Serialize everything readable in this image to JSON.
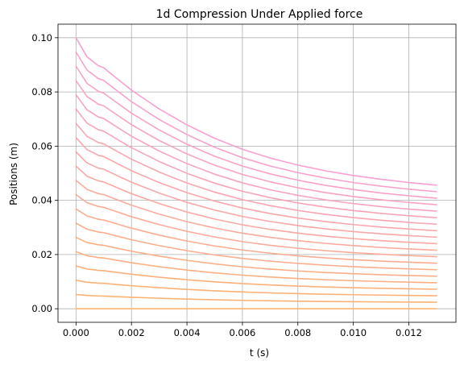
{
  "chart_data": {
    "type": "line",
    "title": "1d Compression Under Applied force",
    "xlabel": "t (s)",
    "ylabel": "Positions (m)",
    "xlim": [
      -0.00065,
      0.0137
    ],
    "ylim": [
      -0.005,
      0.105
    ],
    "xticks": [
      0.0,
      0.002,
      0.004,
      0.006,
      0.008,
      0.01,
      0.012
    ],
    "xtick_labels": [
      "0.000",
      "0.002",
      "0.004",
      "0.006",
      "0.008",
      "0.010",
      "0.012"
    ],
    "yticks": [
      0.0,
      0.02,
      0.04,
      0.06,
      0.08,
      0.1
    ],
    "ytick_labels": [
      "0.00",
      "0.02",
      "0.04",
      "0.06",
      "0.08",
      "0.10"
    ],
    "grid": true,
    "legend": false,
    "color_start": "#fdb36b",
    "color_end": "#f99fd2",
    "x": [
      0.0,
      0.0002,
      0.0004,
      0.0006,
      0.0008,
      0.001,
      0.0015,
      0.002,
      0.003,
      0.004,
      0.005,
      0.006,
      0.007,
      0.008,
      0.009,
      0.01,
      0.011,
      0.012,
      0.013
    ],
    "series": [
      {
        "values": [
          0.0,
          0.0,
          0.0,
          0.0,
          0.0,
          0.0,
          0.0,
          0.0,
          0.0,
          0.0,
          0.0,
          0.0,
          0.0,
          0.0,
          0.0,
          0.0,
          0.0,
          0.0,
          0.0
        ]
      },
      {
        "values": [
          0.00526,
          0.00508,
          0.00489,
          0.00481,
          0.00472,
          0.00468,
          0.00446,
          0.00425,
          0.00388,
          0.00357,
          0.00331,
          0.0031,
          0.00293,
          0.00279,
          0.00268,
          0.00259,
          0.00251,
          0.00245,
          0.0024
        ]
      },
      {
        "values": [
          0.01053,
          0.01015,
          0.00978,
          0.00962,
          0.00944,
          0.00936,
          0.00892,
          0.00849,
          0.00776,
          0.00714,
          0.00662,
          0.00619,
          0.00585,
          0.00558,
          0.00536,
          0.00518,
          0.00503,
          0.0049,
          0.0048
        ]
      },
      {
        "values": [
          0.01579,
          0.01523,
          0.01466,
          0.01442,
          0.01416,
          0.01404,
          0.01338,
          0.01274,
          0.01164,
          0.01071,
          0.00993,
          0.00929,
          0.00878,
          0.00837,
          0.00803,
          0.00776,
          0.00754,
          0.00736,
          0.0072
        ]
      },
      {
        "values": [
          0.02105,
          0.0203,
          0.01955,
          0.01923,
          0.01888,
          0.01872,
          0.01784,
          0.01698,
          0.01552,
          0.01428,
          0.01324,
          0.01239,
          0.01171,
          0.01116,
          0.01071,
          0.01035,
          0.01005,
          0.00981,
          0.0096
        ]
      },
      {
        "values": [
          0.02632,
          0.02538,
          0.02444,
          0.02404,
          0.02359,
          0.0234,
          0.0223,
          0.02123,
          0.0194,
          0.01785,
          0.01655,
          0.01548,
          0.01464,
          0.01395,
          0.01339,
          0.01294,
          0.01256,
          0.01226,
          0.012
        ]
      },
      {
        "values": [
          0.03158,
          0.03045,
          0.02933,
          0.02884,
          0.02831,
          0.02807,
          0.02676,
          0.02547,
          0.02328,
          0.02142,
          0.01986,
          0.01858,
          0.01756,
          0.01674,
          0.01607,
          0.01553,
          0.01508,
          0.01471,
          0.0144
        ]
      },
      {
        "values": [
          0.03684,
          0.03553,
          0.03422,
          0.03365,
          0.03303,
          0.03275,
          0.03122,
          0.02972,
          0.02716,
          0.02499,
          0.02317,
          0.02168,
          0.02049,
          0.01953,
          0.01875,
          0.01811,
          0.01759,
          0.01716,
          0.0168
        ]
      },
      {
        "values": [
          0.04211,
          0.04061,
          0.03911,
          0.03846,
          0.03775,
          0.03743,
          0.03568,
          0.03396,
          0.03104,
          0.02856,
          0.02648,
          0.02477,
          0.02342,
          0.02232,
          0.02142,
          0.0207,
          0.0201,
          0.01961,
          0.0192
        ]
      },
      {
        "values": [
          0.04737,
          0.04568,
          0.044,
          0.04327,
          0.04247,
          0.04211,
          0.04014,
          0.03821,
          0.03492,
          0.03213,
          0.02979,
          0.02787,
          0.02634,
          0.02511,
          0.0241,
          0.02329,
          0.02261,
          0.02207,
          0.0216
        ]
      },
      {
        "values": [
          0.05263,
          0.05076,
          0.04889,
          0.04808,
          0.04719,
          0.04679,
          0.0446,
          0.04245,
          0.0388,
          0.0357,
          0.0331,
          0.03097,
          0.02927,
          0.0279,
          0.02678,
          0.02588,
          0.02513,
          0.02452,
          0.024
        ]
      },
      {
        "values": [
          0.05789,
          0.05583,
          0.05378,
          0.05288,
          0.05191,
          0.05147,
          0.04906,
          0.0467,
          0.04268,
          0.03927,
          0.03641,
          0.03406,
          0.0322,
          0.03069,
          0.02946,
          0.02846,
          0.02764,
          0.02697,
          0.0264
        ]
      },
      {
        "values": [
          0.06316,
          0.06091,
          0.05867,
          0.05769,
          0.05663,
          0.05615,
          0.05352,
          0.05094,
          0.04656,
          0.04284,
          0.03972,
          0.03716,
          0.03512,
          0.03348,
          0.03214,
          0.03105,
          0.03015,
          0.02942,
          0.0288
        ]
      },
      {
        "values": [
          0.06842,
          0.06598,
          0.06356,
          0.0625,
          0.06135,
          0.06083,
          0.05798,
          0.05519,
          0.05044,
          0.04641,
          0.04303,
          0.04026,
          0.03805,
          0.03627,
          0.03481,
          0.03364,
          0.03266,
          0.03187,
          0.0312
        ]
      },
      {
        "values": [
          0.07368,
          0.07106,
          0.06845,
          0.06731,
          0.06607,
          0.06551,
          0.06244,
          0.05943,
          0.05432,
          0.04998,
          0.04634,
          0.04335,
          0.04098,
          0.03906,
          0.03749,
          0.03622,
          0.03518,
          0.03432,
          0.0336
        ]
      },
      {
        "values": [
          0.07895,
          0.07614,
          0.07334,
          0.07212,
          0.07079,
          0.07019,
          0.0669,
          0.06368,
          0.0582,
          0.05355,
          0.04965,
          0.04645,
          0.0439,
          0.04185,
          0.04017,
          0.03881,
          0.03769,
          0.03677,
          0.036
        ]
      },
      {
        "values": [
          0.08421,
          0.08121,
          0.07823,
          0.07692,
          0.07551,
          0.07487,
          0.07136,
          0.06792,
          0.06208,
          0.05712,
          0.05296,
          0.04955,
          0.04683,
          0.04464,
          0.04285,
          0.0414,
          0.0402,
          0.03922,
          0.0384
        ]
      },
      {
        "values": [
          0.08947,
          0.08629,
          0.08312,
          0.08173,
          0.08023,
          0.07955,
          0.07582,
          0.07217,
          0.06596,
          0.06069,
          0.05627,
          0.05264,
          0.04976,
          0.04743,
          0.04553,
          0.04399,
          0.04271,
          0.04168,
          0.0408
        ]
      },
      {
        "values": [
          0.09474,
          0.09136,
          0.08801,
          0.08654,
          0.08495,
          0.08423,
          0.08028,
          0.07641,
          0.06984,
          0.06426,
          0.05958,
          0.05574,
          0.05268,
          0.05022,
          0.04821,
          0.04658,
          0.04523,
          0.04413,
          0.0432
        ]
      },
      {
        "values": [
          0.1,
          0.09644,
          0.0929,
          0.09135,
          0.08967,
          0.08891,
          0.08474,
          0.08066,
          0.07372,
          0.06783,
          0.06289,
          0.05884,
          0.05561,
          0.05301,
          0.05089,
          0.04917,
          0.04774,
          0.04658,
          0.0456
        ]
      }
    ]
  }
}
